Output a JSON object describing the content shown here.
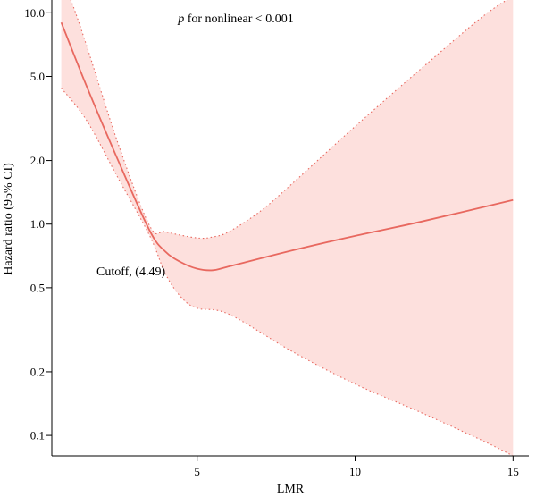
{
  "chart_data": {
    "type": "line",
    "title": "",
    "xlabel": "LMR",
    "ylabel": "Hazard ratio (95% CI)",
    "x_scale": "linear",
    "y_scale": "log",
    "xlim": [
      0.4,
      15.5
    ],
    "ylim": [
      0.08,
      11.5
    ],
    "x_ticks": [
      5,
      10,
      15
    ],
    "x_tick_labels": [
      "5",
      "10",
      "15"
    ],
    "y_ticks": [
      0.1,
      0.2,
      0.5,
      1.0,
      2.0,
      5.0,
      10.0
    ],
    "y_tick_labels": [
      "0.1",
      "0.2",
      "0.5",
      "1.0",
      "2.0",
      "5.0",
      "10.0"
    ],
    "grid": false,
    "colors": {
      "line": "#e8685f",
      "band": "#fde0dd",
      "band_edge": "#e8685f"
    },
    "series": [
      {
        "role": "estimate",
        "x": [
          0.7,
          1.5,
          2.5,
          3.5,
          4.0,
          4.49,
          5.0,
          5.5,
          6.0,
          8.0,
          10.0,
          12.0,
          15.0
        ],
        "y": [
          9.0,
          4.5,
          2.0,
          0.93,
          0.74,
          0.66,
          0.615,
          0.605,
          0.63,
          0.75,
          0.88,
          1.02,
          1.3
        ]
      },
      {
        "role": "ci_upper",
        "x": [
          0.7,
          1.0,
          1.5,
          2.5,
          3.5,
          4.0,
          5.0,
          5.5,
          6.0,
          7.0,
          8.0,
          10.0,
          12.0,
          14.0,
          15.0
        ],
        "y": [
          14.0,
          11.5,
          7.0,
          2.4,
          0.98,
          0.92,
          0.86,
          0.87,
          0.92,
          1.15,
          1.55,
          2.9,
          5.3,
          9.5,
          12.0
        ]
      },
      {
        "role": "ci_lower",
        "x": [
          0.7,
          1.5,
          2.5,
          3.5,
          4.0,
          4.5,
          5.0,
          6.0,
          8.0,
          10.0,
          12.0,
          14.0,
          15.0
        ],
        "y": [
          4.4,
          3.1,
          1.65,
          0.88,
          0.58,
          0.45,
          0.4,
          0.375,
          0.25,
          0.175,
          0.13,
          0.095,
          0.08
        ]
      }
    ],
    "annotations": {
      "p_label_italic": "p",
      "p_label_rest": " for nonlinear < 0.001",
      "cutoff_label": "Cutoff, (4.49)",
      "cutoff_x": 4.49
    }
  }
}
